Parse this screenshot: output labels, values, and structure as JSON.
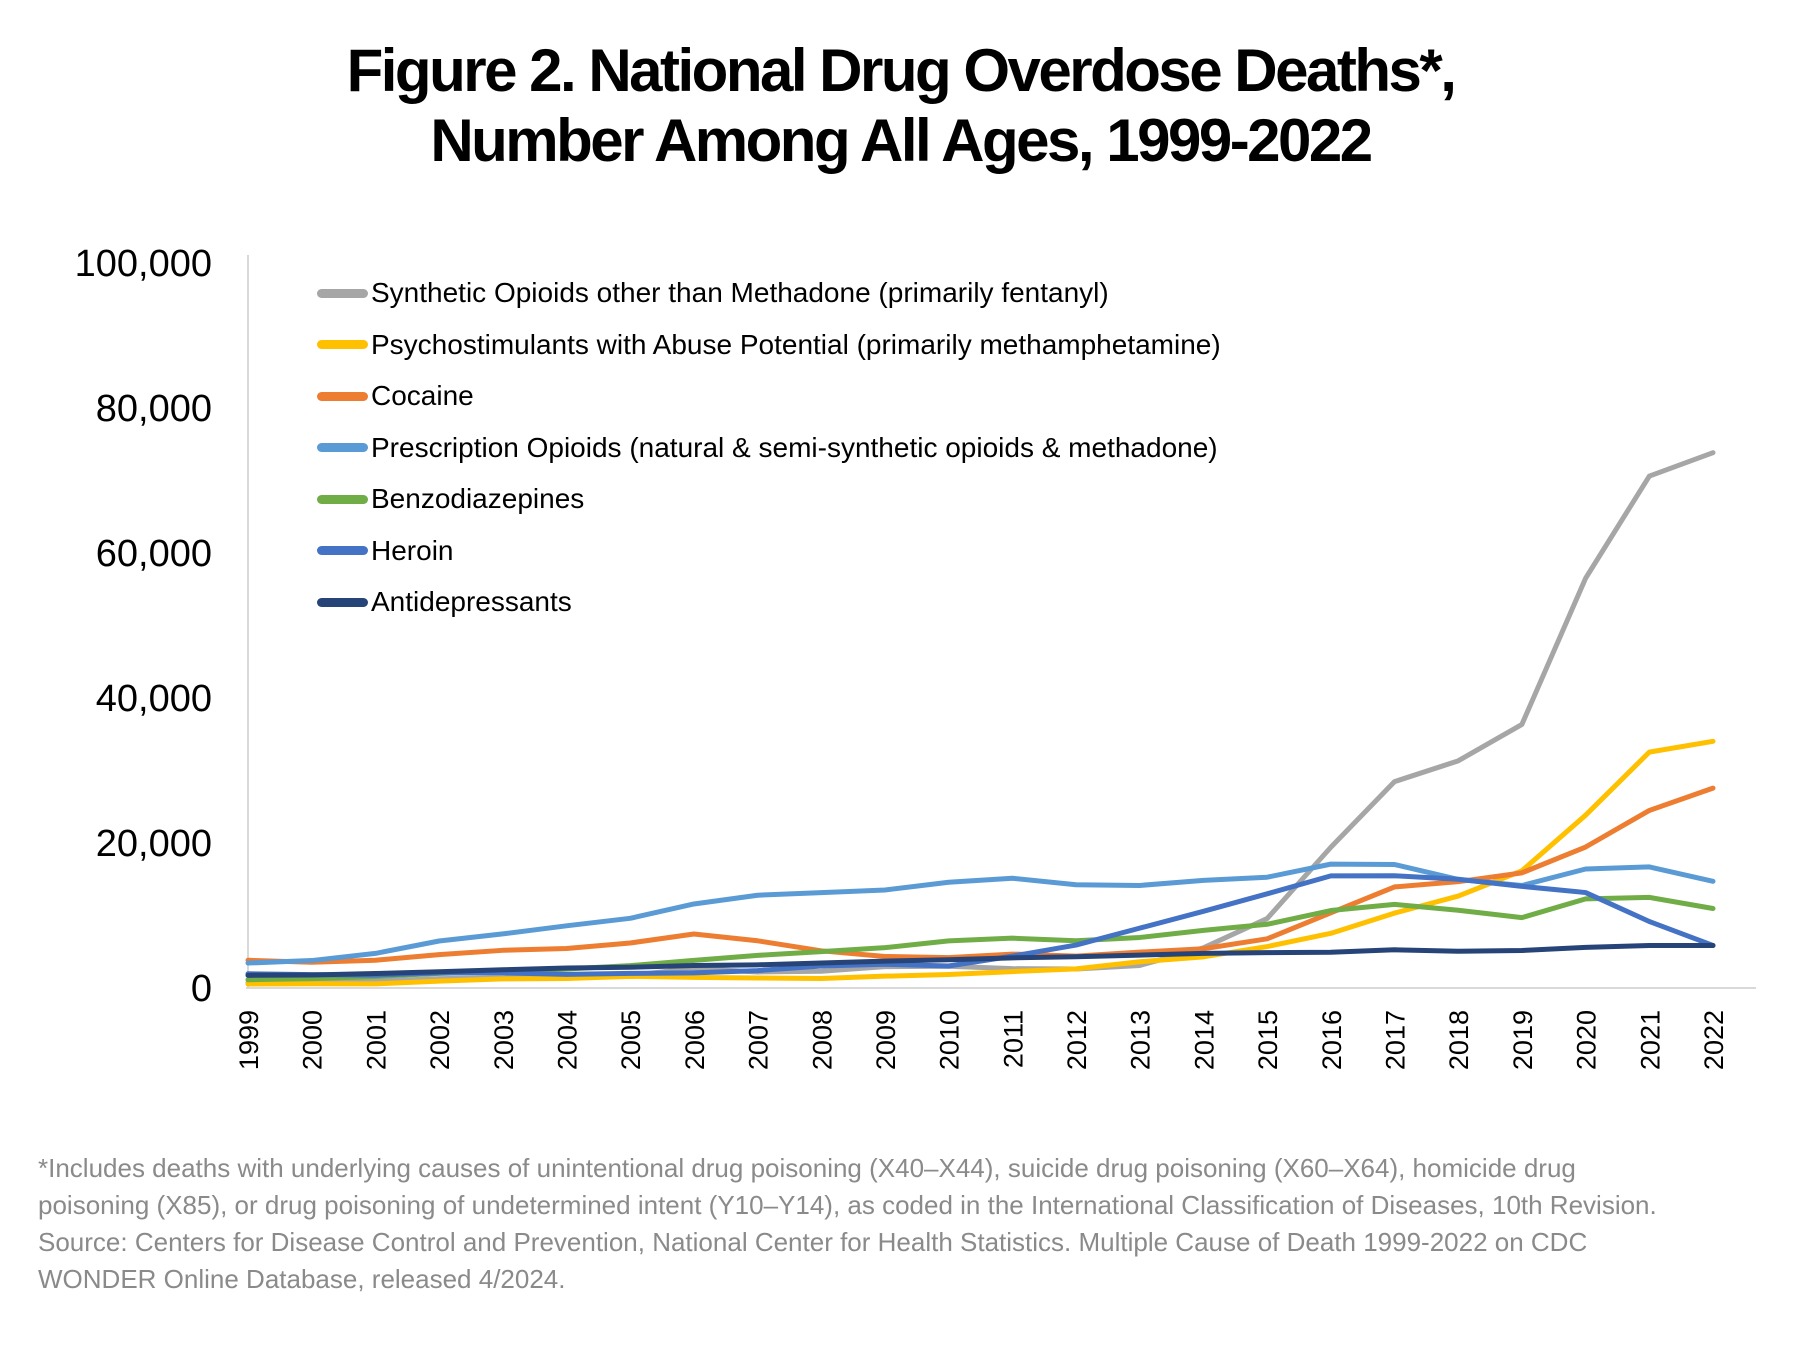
{
  "title": {
    "line1": "Figure 2. National Drug Overdose Deaths*,",
    "line2": "Number Among All Ages, 1999-2022"
  },
  "chart_data": {
    "type": "line",
    "title": "Figure 2. National Drug Overdose Deaths*, Number Among All Ages, 1999-2022",
    "xlabel": "",
    "ylabel": "",
    "ylim": [
      0,
      100000
    ],
    "y_ticks": [
      0,
      20000,
      40000,
      60000,
      80000,
      100000
    ],
    "grid": false,
    "legend_position": "top-left-inside",
    "categories": [
      1999,
      2000,
      2001,
      2002,
      2003,
      2004,
      2005,
      2006,
      2007,
      2008,
      2009,
      2010,
      2011,
      2012,
      2013,
      2014,
      2015,
      2016,
      2017,
      2018,
      2019,
      2020,
      2021,
      2022
    ],
    "series": [
      {
        "id": "synthetic-opioids",
        "name": "Synthetic Opioids other than Methadone (primarily fentanyl)",
        "color": "#a6a6a6",
        "values": [
          730,
          782,
          957,
          1295,
          1400,
          1664,
          1742,
          2707,
          2213,
          2306,
          2946,
          3007,
          2666,
          2628,
          3105,
          5544,
          9580,
          19413,
          28466,
          31335,
          36359,
          56516,
          70601,
          73838
        ]
      },
      {
        "id": "psychostimulants",
        "name": "Psychostimulants with Abuse Potential (primarily methamphetamine)",
        "color": "#ffc000",
        "values": [
          547,
          578,
          563,
          941,
          1256,
          1305,
          1608,
          1462,
          1378,
          1302,
          1632,
          1854,
          2266,
          2635,
          3627,
          4298,
          5716,
          7542,
          10333,
          12676,
          16167,
          23837,
          32537,
          34022
        ]
      },
      {
        "id": "cocaine",
        "name": "Cocaine",
        "color": "#ed7d31",
        "values": [
          3822,
          3544,
          3833,
          4599,
          5199,
          5443,
          6208,
          7448,
          6512,
          5129,
          4350,
          4183,
          4681,
          4404,
          4944,
          5415,
          6784,
          10375,
          13942,
          14666,
          15883,
          19447,
          24486,
          27569
        ]
      },
      {
        "id": "prescription-opioids",
        "name": "Prescription Opioids (natural & semi-synthetic opioids & methadone)",
        "color": "#5b9bd5",
        "values": [
          3442,
          3785,
          4770,
          6483,
          7461,
          8577,
          9612,
          11589,
          12796,
          13149,
          13523,
          14583,
          15140,
          14240,
          14145,
          14838,
          15281,
          17087,
          17029,
          14975,
          14139,
          16416,
          16706,
          14716
        ]
      },
      {
        "id": "benzodiazepines",
        "name": "Benzodiazepines",
        "color": "#70ad47",
        "values": [
          1135,
          1298,
          1594,
          2022,
          2248,
          2627,
          3084,
          3805,
          4500,
          5010,
          5567,
          6497,
          6872,
          6524,
          6973,
          7945,
          8791,
          10684,
          11537,
          10724,
          9711,
          12290,
          12499,
          10964
        ]
      },
      {
        "id": "heroin",
        "name": "Heroin",
        "color": "#4472c4",
        "values": [
          1960,
          1842,
          1779,
          2089,
          2080,
          1878,
          2009,
          2088,
          2399,
          3041,
          3278,
          3036,
          4397,
          5925,
          8257,
          10574,
          12989,
          15469,
          15482,
          14996,
          14019,
          13165,
          9173,
          5871
        ]
      },
      {
        "id": "antidepressants",
        "name": "Antidepressants",
        "color": "#264478",
        "values": [
          1749,
          1798,
          1997,
          2243,
          2512,
          2758,
          2861,
          3097,
          3194,
          3449,
          3709,
          3889,
          4161,
          4316,
          4538,
          4768,
          4883,
          4927,
          5269,
          5064,
          5175,
          5597,
          5859,
          5863
        ]
      }
    ]
  },
  "footnote": {
    "line1": "*Includes deaths with underlying causes of unintentional drug poisoning (X40–X44), suicide drug poisoning (X60–X64), homicide drug",
    "line2": "poisoning (X85), or drug poisoning of undetermined intent (Y10–Y14), as coded in the International Classification of Diseases, 10th Revision.",
    "line3": "Source: Centers for Disease Control and Prevention, National Center for Health Statistics. Multiple Cause of Death 1999-2022 on CDC",
    "line4": "WONDER Online Database, released 4/2024."
  }
}
